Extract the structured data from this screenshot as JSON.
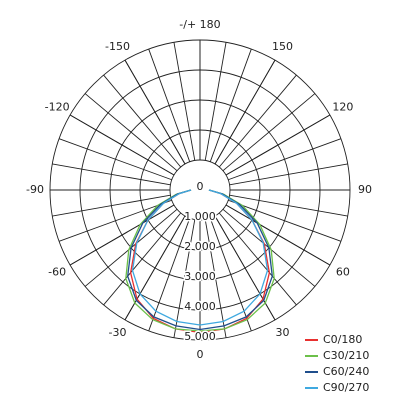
{
  "chart_data": {
    "type": "polar",
    "x": [
      -90,
      -80,
      -70,
      -60,
      -50,
      -40,
      -30,
      -20,
      -10,
      0,
      10,
      20,
      30,
      40,
      50,
      60,
      70,
      80,
      90
    ],
    "series": [
      {
        "name": "C0/180",
        "color": "#e8302f",
        "values": [
          300,
          700,
          1300,
          2000,
          2800,
          3600,
          4200,
          4550,
          4700,
          4750,
          4700,
          4550,
          4200,
          3600,
          2800,
          2000,
          1300,
          700,
          300
        ]
      },
      {
        "name": "C30/210",
        "color": "#6cc04a",
        "values": [
          300,
          800,
          1500,
          2300,
          3100,
          3850,
          4350,
          4600,
          4700,
          4700,
          4700,
          4600,
          4350,
          3850,
          3100,
          2300,
          1500,
          800,
          300
        ]
      },
      {
        "name": "C60/240",
        "color": "#1f4e8c",
        "values": [
          300,
          750,
          1400,
          2200,
          3000,
          3750,
          4250,
          4500,
          4600,
          4650,
          4600,
          4500,
          4250,
          3750,
          3000,
          2200,
          1400,
          750,
          300
        ]
      },
      {
        "name": "C90/270",
        "color": "#3fa9e0",
        "values": [
          300,
          700,
          1300,
          2000,
          2750,
          3500,
          4000,
          4300,
          4450,
          4500,
          4450,
          4300,
          4000,
          3500,
          2750,
          2000,
          1300,
          700,
          300
        ]
      }
    ],
    "rlim": [
      0,
      5000
    ],
    "rticks": [
      0,
      {
        "value": 1000,
        "label": "1 000"
      },
      {
        "value": 2000,
        "label": "2 000"
      },
      {
        "value": 3000,
        "label": "3 000"
      },
      {
        "value": 4000,
        "label": "4 000"
      },
      {
        "value": 5000,
        "label": "5 000"
      }
    ],
    "angle_ticks": [
      0,
      30,
      60,
      90,
      120,
      150,
      {
        "value": 180,
        "label": "-/+ 180"
      },
      -150,
      -120,
      -90,
      -60,
      -30
    ],
    "legend": "lower right"
  }
}
